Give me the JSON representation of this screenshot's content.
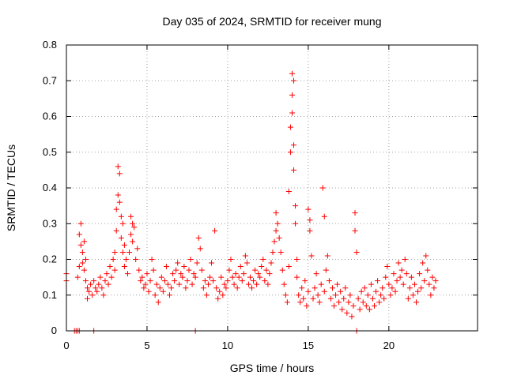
{
  "chart_data": {
    "type": "scatter",
    "title": "Day 035 of 2024, SRMTID for receiver mung",
    "xlabel": "GPS time / hours",
    "ylabel": "SRMTID / TECUs",
    "xlim": [
      0,
      25.5
    ],
    "ylim": [
      0,
      0.8
    ],
    "xticks": [
      0,
      5,
      10,
      15,
      20
    ],
    "yticks": [
      0,
      0.1,
      0.2,
      0.3,
      0.4,
      0.5,
      0.6,
      0.7,
      0.8
    ],
    "xtick_labels": [
      "0",
      "5",
      "10",
      "15",
      "20"
    ],
    "ytick_labels": [
      "0",
      "0.1",
      "0.2",
      "0.3",
      "0.4",
      "0.5",
      "0.6",
      "0.7",
      "0.8"
    ],
    "grid": true,
    "marker": "+",
    "color": "#ff0000",
    "series": [
      {
        "name": "SRMTID",
        "points": [
          [
            0.0,
            0.16
          ],
          [
            0.0,
            0.14
          ],
          [
            0.5,
            0.0
          ],
          [
            0.6,
            0.0
          ],
          [
            0.7,
            0.0
          ],
          [
            0.8,
            0.0
          ],
          [
            0.7,
            0.15
          ],
          [
            0.8,
            0.18
          ],
          [
            0.8,
            0.27
          ],
          [
            0.9,
            0.3
          ],
          [
            0.9,
            0.24
          ],
          [
            1.0,
            0.22
          ],
          [
            1.0,
            0.19
          ],
          [
            1.1,
            0.25
          ],
          [
            1.1,
            0.17
          ],
          [
            1.2,
            0.2
          ],
          [
            1.2,
            0.14
          ],
          [
            1.3,
            0.12
          ],
          [
            1.3,
            0.09
          ],
          [
            1.4,
            0.11
          ],
          [
            1.5,
            0.13
          ],
          [
            1.6,
            0.1
          ],
          [
            1.7,
            0.0
          ],
          [
            1.7,
            0.14
          ],
          [
            1.8,
            0.12
          ],
          [
            1.9,
            0.11
          ],
          [
            2.0,
            0.13
          ],
          [
            2.1,
            0.15
          ],
          [
            2.2,
            0.12
          ],
          [
            2.3,
            0.1
          ],
          [
            2.4,
            0.14
          ],
          [
            2.5,
            0.16
          ],
          [
            2.6,
            0.13
          ],
          [
            2.7,
            0.18
          ],
          [
            2.8,
            0.15
          ],
          [
            2.9,
            0.2
          ],
          [
            3.0,
            0.22
          ],
          [
            3.0,
            0.17
          ],
          [
            3.1,
            0.28
          ],
          [
            3.1,
            0.34
          ],
          [
            3.2,
            0.38
          ],
          [
            3.2,
            0.46
          ],
          [
            3.3,
            0.44
          ],
          [
            3.3,
            0.36
          ],
          [
            3.4,
            0.32
          ],
          [
            3.4,
            0.26
          ],
          [
            3.5,
            0.3
          ],
          [
            3.5,
            0.22
          ],
          [
            3.6,
            0.18
          ],
          [
            3.6,
            0.24
          ],
          [
            3.7,
            0.2
          ],
          [
            3.8,
            0.16
          ],
          [
            3.9,
            0.22
          ],
          [
            4.0,
            0.27
          ],
          [
            4.0,
            0.32
          ],
          [
            4.1,
            0.3
          ],
          [
            4.1,
            0.25
          ],
          [
            4.2,
            0.29
          ],
          [
            4.3,
            0.2
          ],
          [
            4.4,
            0.23
          ],
          [
            4.5,
            0.17
          ],
          [
            4.6,
            0.14
          ],
          [
            4.7,
            0.15
          ],
          [
            4.8,
            0.12
          ],
          [
            4.9,
            0.13
          ],
          [
            5.0,
            0.16
          ],
          [
            5.1,
            0.11
          ],
          [
            5.2,
            0.14
          ],
          [
            5.3,
            0.2
          ],
          [
            5.4,
            0.17
          ],
          [
            5.5,
            0.1
          ],
          [
            5.6,
            0.13
          ],
          [
            5.7,
            0.08
          ],
          [
            5.8,
            0.12
          ],
          [
            5.9,
            0.15
          ],
          [
            6.0,
            0.11
          ],
          [
            6.1,
            0.14
          ],
          [
            6.2,
            0.18
          ],
          [
            6.3,
            0.13
          ],
          [
            6.4,
            0.1
          ],
          [
            6.5,
            0.12
          ],
          [
            6.6,
            0.16
          ],
          [
            6.7,
            0.14
          ],
          [
            6.8,
            0.17
          ],
          [
            6.9,
            0.19
          ],
          [
            7.0,
            0.13
          ],
          [
            7.1,
            0.16
          ],
          [
            7.2,
            0.15
          ],
          [
            7.3,
            0.18
          ],
          [
            7.4,
            0.12
          ],
          [
            7.5,
            0.14
          ],
          [
            7.6,
            0.17
          ],
          [
            7.7,
            0.2
          ],
          [
            7.8,
            0.13
          ],
          [
            7.9,
            0.16
          ],
          [
            8.0,
            0.0
          ],
          [
            8.0,
            0.15
          ],
          [
            8.1,
            0.19
          ],
          [
            8.2,
            0.26
          ],
          [
            8.3,
            0.23
          ],
          [
            8.4,
            0.17
          ],
          [
            8.5,
            0.12
          ],
          [
            8.6,
            0.14
          ],
          [
            8.7,
            0.1
          ],
          [
            8.8,
            0.13
          ],
          [
            8.9,
            0.15
          ],
          [
            9.0,
            0.19
          ],
          [
            9.1,
            0.14
          ],
          [
            9.2,
            0.28
          ],
          [
            9.3,
            0.12
          ],
          [
            9.4,
            0.09
          ],
          [
            9.5,
            0.11
          ],
          [
            9.6,
            0.15
          ],
          [
            9.7,
            0.1
          ],
          [
            9.8,
            0.13
          ],
          [
            9.9,
            0.12
          ],
          [
            10.0,
            0.14
          ],
          [
            10.1,
            0.17
          ],
          [
            10.2,
            0.2
          ],
          [
            10.3,
            0.15
          ],
          [
            10.4,
            0.13
          ],
          [
            10.5,
            0.16
          ],
          [
            10.6,
            0.12
          ],
          [
            10.7,
            0.15
          ],
          [
            10.8,
            0.18
          ],
          [
            10.9,
            0.14
          ],
          [
            11.0,
            0.16
          ],
          [
            11.1,
            0.21
          ],
          [
            11.2,
            0.19
          ],
          [
            11.3,
            0.13
          ],
          [
            11.4,
            0.15
          ],
          [
            11.5,
            0.12
          ],
          [
            11.6,
            0.14
          ],
          [
            11.7,
            0.17
          ],
          [
            11.8,
            0.13
          ],
          [
            11.9,
            0.16
          ],
          [
            12.0,
            0.15
          ],
          [
            12.1,
            0.18
          ],
          [
            12.2,
            0.2
          ],
          [
            12.3,
            0.14
          ],
          [
            12.4,
            0.17
          ],
          [
            12.5,
            0.13
          ],
          [
            12.6,
            0.16
          ],
          [
            12.7,
            0.19
          ],
          [
            12.8,
            0.22
          ],
          [
            12.9,
            0.25
          ],
          [
            13.0,
            0.28
          ],
          [
            13.0,
            0.33
          ],
          [
            13.1,
            0.3
          ],
          [
            13.2,
            0.26
          ],
          [
            13.3,
            0.22
          ],
          [
            13.4,
            0.17
          ],
          [
            13.5,
            0.13
          ],
          [
            13.6,
            0.1
          ],
          [
            13.7,
            0.08
          ],
          [
            13.8,
            0.18
          ],
          [
            13.8,
            0.39
          ],
          [
            13.9,
            0.5
          ],
          [
            13.9,
            0.57
          ],
          [
            14.0,
            0.61
          ],
          [
            14.0,
            0.66
          ],
          [
            14.0,
            0.72
          ],
          [
            14.1,
            0.7
          ],
          [
            14.1,
            0.52
          ],
          [
            14.1,
            0.45
          ],
          [
            14.2,
            0.35
          ],
          [
            14.2,
            0.3
          ],
          [
            14.3,
            0.2
          ],
          [
            14.3,
            0.15
          ],
          [
            14.4,
            0.1
          ],
          [
            14.5,
            0.08
          ],
          [
            14.6,
            0.12
          ],
          [
            14.7,
            0.09
          ],
          [
            14.8,
            0.14
          ],
          [
            14.9,
            0.07
          ],
          [
            15.0,
            0.11
          ],
          [
            15.0,
            0.34
          ],
          [
            15.1,
            0.31
          ],
          [
            15.1,
            0.28
          ],
          [
            15.2,
            0.21
          ],
          [
            15.3,
            0.09
          ],
          [
            15.4,
            0.12
          ],
          [
            15.5,
            0.16
          ],
          [
            15.6,
            0.1
          ],
          [
            15.7,
            0.08
          ],
          [
            15.8,
            0.13
          ],
          [
            15.9,
            0.4
          ],
          [
            16.0,
            0.32
          ],
          [
            16.0,
            0.11
          ],
          [
            16.1,
            0.17
          ],
          [
            16.2,
            0.21
          ],
          [
            16.3,
            0.14
          ],
          [
            16.4,
            0.09
          ],
          [
            16.5,
            0.12
          ],
          [
            16.6,
            0.07
          ],
          [
            16.7,
            0.1
          ],
          [
            16.8,
            0.13
          ],
          [
            16.9,
            0.08
          ],
          [
            17.0,
            0.11
          ],
          [
            17.1,
            0.06
          ],
          [
            17.2,
            0.09
          ],
          [
            17.3,
            0.12
          ],
          [
            17.4,
            0.05
          ],
          [
            17.5,
            0.08
          ],
          [
            17.6,
            0.1
          ],
          [
            17.7,
            0.04
          ],
          [
            17.8,
            0.07
          ],
          [
            17.9,
            0.33
          ],
          [
            17.9,
            0.28
          ],
          [
            18.0,
            0.22
          ],
          [
            18.0,
            0.0
          ],
          [
            18.1,
            0.09
          ],
          [
            18.2,
            0.06
          ],
          [
            18.3,
            0.11
          ],
          [
            18.4,
            0.08
          ],
          [
            18.5,
            0.12
          ],
          [
            18.6,
            0.07
          ],
          [
            18.7,
            0.1
          ],
          [
            18.8,
            0.06
          ],
          [
            18.9,
            0.13
          ],
          [
            19.0,
            0.09
          ],
          [
            19.1,
            0.07
          ],
          [
            19.2,
            0.11
          ],
          [
            19.3,
            0.14
          ],
          [
            19.4,
            0.08
          ],
          [
            19.5,
            0.1
          ],
          [
            19.6,
            0.12
          ],
          [
            19.7,
            0.09
          ],
          [
            19.8,
            0.15
          ],
          [
            19.9,
            0.18
          ],
          [
            20.0,
            0.13
          ],
          [
            20.1,
            0.1
          ],
          [
            20.2,
            0.12
          ],
          [
            20.3,
            0.16
          ],
          [
            20.4,
            0.11
          ],
          [
            20.5,
            0.14
          ],
          [
            20.6,
            0.19
          ],
          [
            20.7,
            0.15
          ],
          [
            20.8,
            0.17
          ],
          [
            20.9,
            0.13
          ],
          [
            21.0,
            0.2
          ],
          [
            21.1,
            0.16
          ],
          [
            21.2,
            0.09
          ],
          [
            21.3,
            0.12
          ],
          [
            21.4,
            0.15
          ],
          [
            21.5,
            0.1
          ],
          [
            21.6,
            0.13
          ],
          [
            21.7,
            0.08
          ],
          [
            21.8,
            0.11
          ],
          [
            21.9,
            0.16
          ],
          [
            22.0,
            0.12
          ],
          [
            22.1,
            0.19
          ],
          [
            22.2,
            0.14
          ],
          [
            22.3,
            0.21
          ],
          [
            22.4,
            0.17
          ],
          [
            22.5,
            0.13
          ],
          [
            22.6,
            0.1
          ],
          [
            22.7,
            0.15
          ],
          [
            22.8,
            0.12
          ],
          [
            22.9,
            0.14
          ]
        ]
      }
    ]
  }
}
